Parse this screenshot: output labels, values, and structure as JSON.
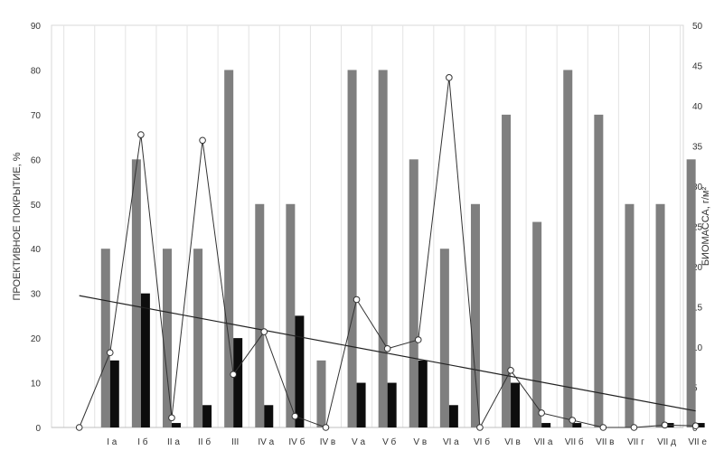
{
  "chart_data": {
    "type": "bar",
    "categories": [
      "I а",
      "I б",
      "II а",
      "II б",
      "III",
      "IV а",
      "IV б",
      "IV в",
      "V а",
      "V б",
      "V в",
      "VI а",
      "VI б",
      "VI в",
      "VII а",
      "VII б",
      "VII в",
      "VII г",
      "VII д",
      "VII е"
    ],
    "ylabel": "ПРОЕКТИВНОЕ ПОКРЫТИЕ, %",
    "y2label": "БИОМАССА, г/м²",
    "ylim": [
      0,
      90
    ],
    "y2lim": [
      0,
      50
    ],
    "yticks": [
      0,
      10,
      20,
      30,
      40,
      50,
      60,
      70,
      80,
      90
    ],
    "y2ticks": [
      0,
      5,
      10,
      15,
      20,
      25,
      30,
      35,
      40,
      45,
      50
    ],
    "grid": "vertical",
    "legend": "none",
    "series": [
      {
        "kind": "bar",
        "axis": "left",
        "color": "#7f7f7f",
        "values": [
          40,
          60,
          40,
          40,
          80,
          50,
          50,
          15,
          80,
          80,
          60,
          40,
          50,
          70,
          46,
          80,
          70,
          50,
          50,
          60
        ]
      },
      {
        "kind": "bar",
        "axis": "left",
        "color": "#0d0d0d",
        "values": [
          15,
          30,
          1,
          5,
          20,
          5,
          25,
          0,
          10,
          10,
          15,
          5,
          0,
          10,
          1,
          1,
          0,
          0,
          1,
          1
        ]
      },
      {
        "kind": "line",
        "axis": "right",
        "marker": "circle",
        "x": [
          0,
          1,
          2,
          3,
          4,
          5,
          6,
          7,
          8,
          9,
          10,
          11,
          12,
          13,
          14,
          15,
          16,
          17,
          18,
          19,
          20
        ],
        "values": [
          0,
          9.3,
          36.4,
          1.2,
          35.7,
          6.6,
          11.9,
          1.4,
          0,
          15.9,
          9.8,
          10.9,
          43.5,
          0,
          7.1,
          1.8,
          0.9,
          0,
          0,
          0.3,
          0.2
        ]
      },
      {
        "kind": "trendline",
        "axis": "left",
        "x": [
          0,
          20
        ],
        "values": [
          29.5,
          3.7
        ]
      }
    ]
  }
}
